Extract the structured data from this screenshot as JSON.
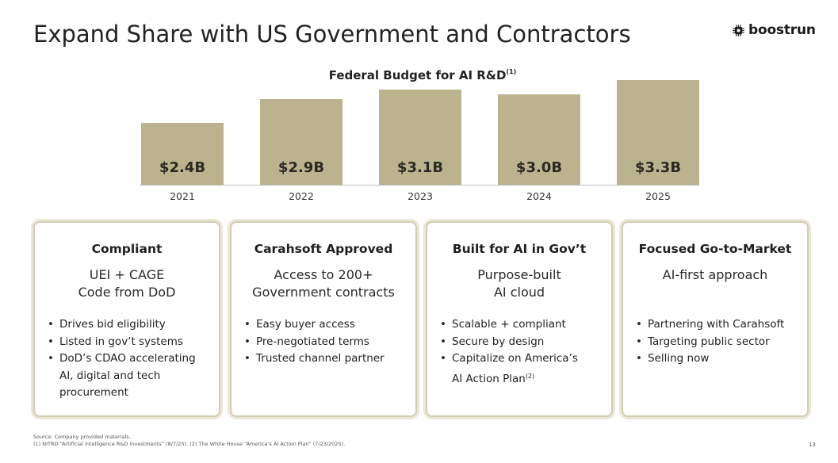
{
  "title": "Expand Share with US Government and Contractors",
  "logo": {
    "text": "boostrun",
    "icon": "chip-icon"
  },
  "chart_data": {
    "type": "bar",
    "title": "Federal Budget for AI R&D",
    "title_superscript": "(1)",
    "categories": [
      "2021",
      "2022",
      "2023",
      "2024",
      "2025"
    ],
    "values": [
      2.4,
      2.9,
      3.1,
      3.0,
      3.3
    ],
    "value_labels": [
      "$2.4B",
      "$2.9B",
      "$3.1B",
      "$3.0B",
      "$3.3B"
    ],
    "xlabel": "",
    "ylabel": "",
    "unit": "$B",
    "grid": false,
    "legend": "none",
    "bar_color": "#bbb38e"
  },
  "cards": [
    {
      "title": "Compliant",
      "subtitle": "UEI + CAGE\nCode from DoD",
      "bullets": [
        "Drives bid eligibility",
        "Listed in gov’t systems",
        "DoD’s CDAO accelerating AI, digital and tech procurement"
      ]
    },
    {
      "title": "Carahsoft Approved",
      "subtitle": "Access to 200+\nGovernment contracts",
      "bullets": [
        "Easy buyer access",
        "Pre-negotiated terms",
        "Trusted channel partner"
      ]
    },
    {
      "title": "Built for AI in Gov’t",
      "subtitle": "Purpose-built\nAI cloud",
      "bullets": [
        "Scalable + compliant",
        "Secure by design",
        "Capitalize on America’s AI Action Plan"
      ],
      "last_bullet_superscript": "(2)"
    },
    {
      "title": "Focused Go-to-Market",
      "subtitle": "AI-first approach",
      "bullets": [
        "Partnering with Carahsoft",
        "Targeting public sector",
        "Selling now"
      ]
    }
  ],
  "footnotes": {
    "source": "Source: Company provided materials.",
    "notes": "(1) NITRD “Artificial Intelligence R&D Investments” (8/7/25). (2) The White House “America’s AI Action Plan” (7/23/2025)."
  },
  "page_number": "13",
  "colors": {
    "bar": "#bbb38e",
    "card_border": "#d2ccb2",
    "text": "#1f1f1f"
  }
}
